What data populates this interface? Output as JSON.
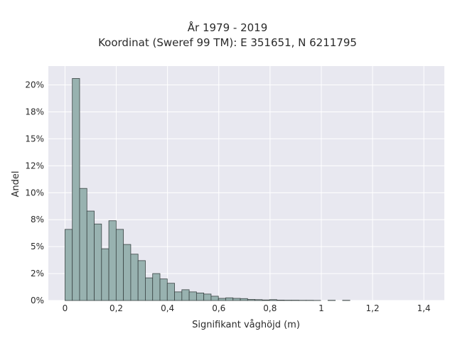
{
  "colors": {
    "plot_background": "#e8e8f0",
    "grid": "#ffffff",
    "bar_fill": "#98b2b0",
    "bar_edge": "#3a4444",
    "text": "#2a2a2a"
  },
  "chart_data": {
    "type": "bar",
    "title": "År 1979 - 2019",
    "subtitle": "Koordinat (Sweref 99 TM): E 351651, N 6211795",
    "xlabel": "Signifikant våghöjd (m)",
    "ylabel": "Andel",
    "xlim": [
      -0.065,
      1.48
    ],
    "ylim": [
      0,
      0.2175
    ],
    "grid": true,
    "legend": "none",
    "bin_width": 0.0285,
    "x_ticks": [
      {
        "value": 0,
        "label": "0"
      },
      {
        "value": 0.2,
        "label": "0,2"
      },
      {
        "value": 0.4,
        "label": "0,4"
      },
      {
        "value": 0.6,
        "label": "0,6"
      },
      {
        "value": 0.8,
        "label": "0,8"
      },
      {
        "value": 1.0,
        "label": "1"
      },
      {
        "value": 1.2,
        "label": "1,2"
      },
      {
        "value": 1.4,
        "label": "1,4"
      }
    ],
    "y_ticks": [
      {
        "value": 0,
        "label": "0%"
      },
      {
        "value": 0.025,
        "label": "2%"
      },
      {
        "value": 0.05,
        "label": "5%"
      },
      {
        "value": 0.075,
        "label": "8%"
      },
      {
        "value": 0.1,
        "label": "10%"
      },
      {
        "value": 0.125,
        "label": "12%"
      },
      {
        "value": 0.15,
        "label": "15%"
      },
      {
        "value": 0.175,
        "label": "18%"
      },
      {
        "value": 0.2,
        "label": "20%"
      }
    ],
    "bins_start": [
      0.0,
      0.0285,
      0.057,
      0.0855,
      0.114,
      0.1425,
      0.171,
      0.1995,
      0.228,
      0.2565,
      0.285,
      0.3135,
      0.342,
      0.3705,
      0.399,
      0.4275,
      0.456,
      0.4845,
      0.513,
      0.5415,
      0.57,
      0.5985,
      0.627,
      0.6555,
      0.684,
      0.7125,
      0.741,
      0.7695,
      0.798,
      0.8265,
      0.855,
      0.8835,
      0.912,
      0.9405,
      0.969,
      0.9975,
      1.026,
      1.0545,
      1.083
    ],
    "values": [
      0.066,
      0.206,
      0.104,
      0.083,
      0.071,
      0.048,
      0.074,
      0.066,
      0.052,
      0.043,
      0.037,
      0.021,
      0.025,
      0.02,
      0.016,
      0.008,
      0.01,
      0.008,
      0.007,
      0.006,
      0.004,
      0.002,
      0.0025,
      0.002,
      0.0018,
      0.001,
      0.0008,
      0.0005,
      0.0008,
      0.0004,
      0.0003,
      0.0003,
      0.0002,
      0.0002,
      0.0001,
      0.0,
      0.0002,
      0.0,
      0.0002
    ]
  }
}
